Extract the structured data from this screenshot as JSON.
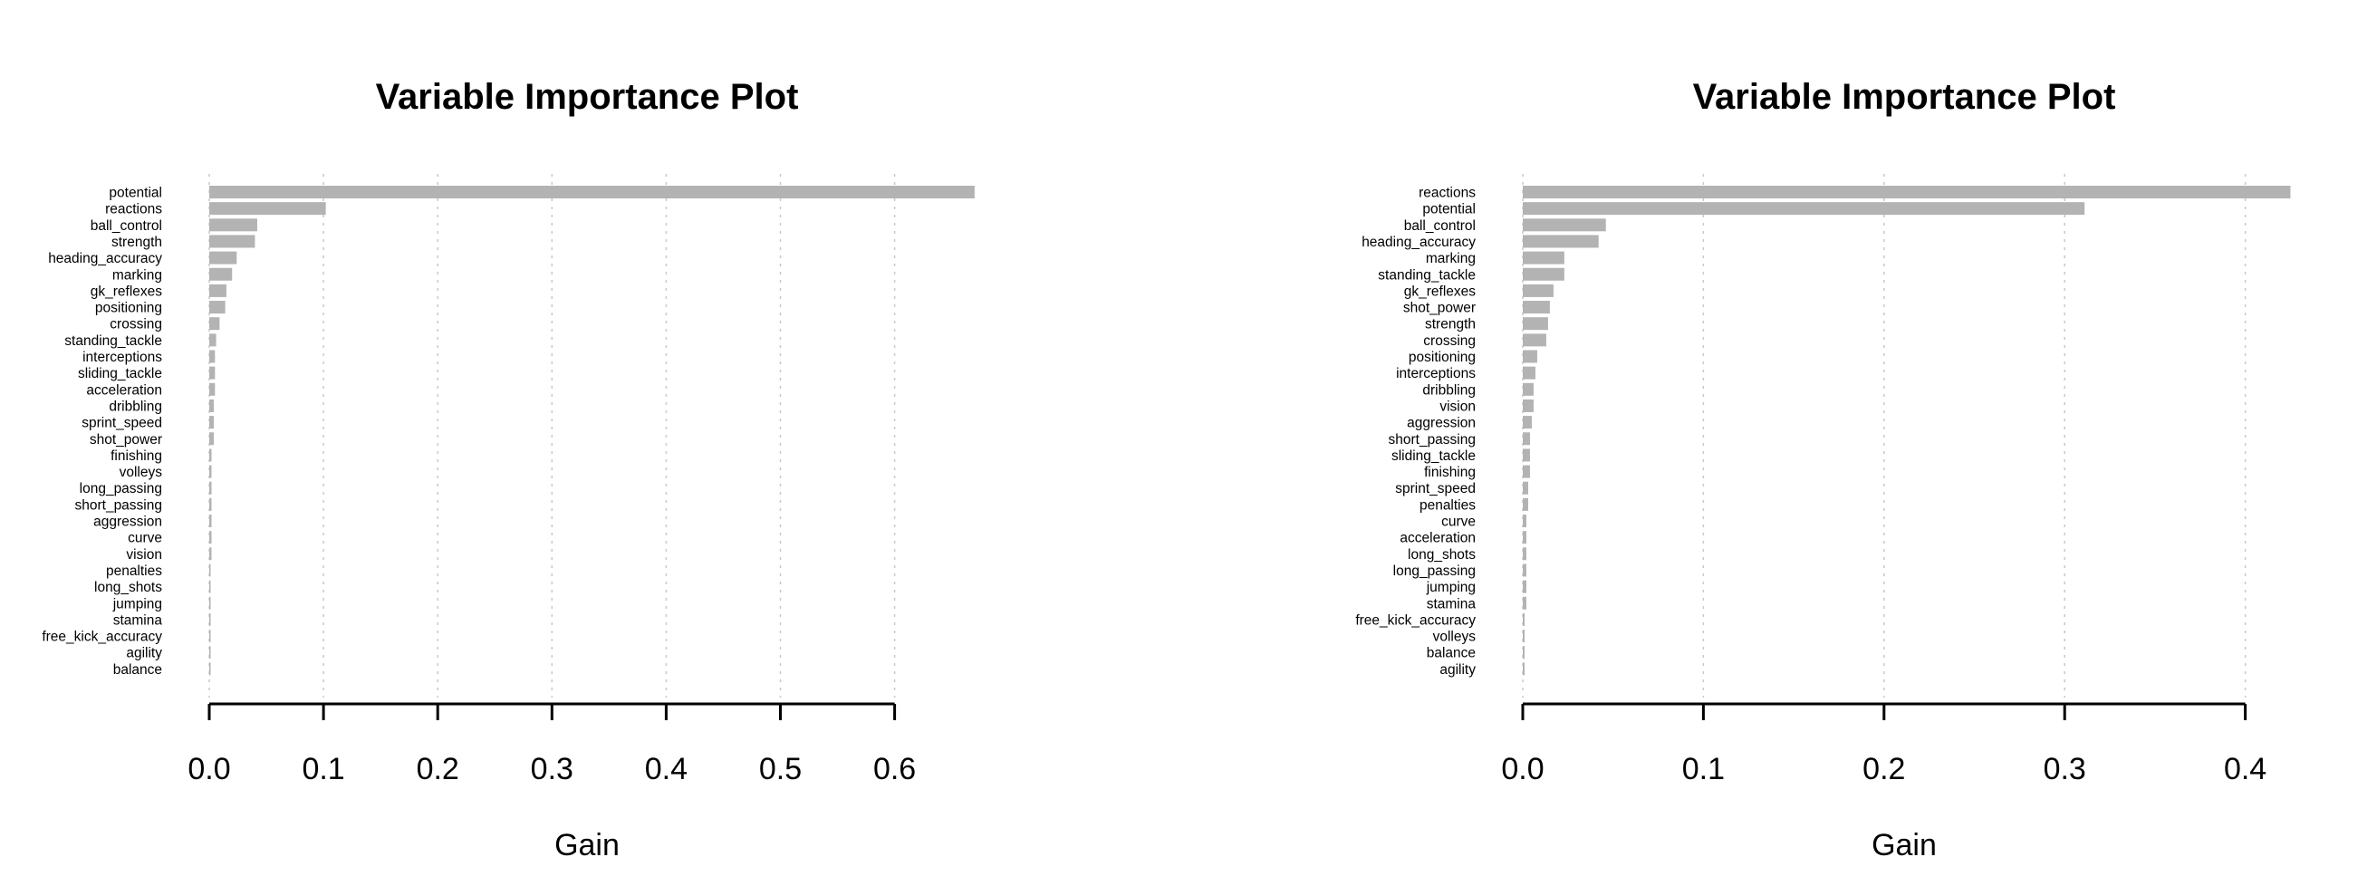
{
  "chart_data": [
    {
      "type": "bar",
      "orientation": "horizontal",
      "title": "Variable Importance Plot",
      "xlabel": "Gain",
      "ylabel": "",
      "xlim": [
        0,
        0.67
      ],
      "ticks": [
        "0.0",
        "0.1",
        "0.2",
        "0.3",
        "0.4",
        "0.5",
        "0.6"
      ],
      "tick_values": [
        0,
        0.1,
        0.2,
        0.3,
        0.4,
        0.5,
        0.6
      ],
      "grid": true,
      "bar_color": "#b3b3b3",
      "categories": [
        "potential",
        "reactions",
        "ball_control",
        "strength",
        "heading_accuracy",
        "marking",
        "gk_reflexes",
        "positioning",
        "crossing",
        "standing_tackle",
        "interceptions",
        "sliding_tackle",
        "acceleration",
        "dribbling",
        "sprint_speed",
        "shot_power",
        "finishing",
        "volleys",
        "long_passing",
        "short_passing",
        "aggression",
        "curve",
        "vision",
        "penalties",
        "long_shots",
        "jumping",
        "stamina",
        "free_kick_accuracy",
        "agility",
        "balance"
      ],
      "values": [
        0.67,
        0.102,
        0.042,
        0.04,
        0.024,
        0.02,
        0.015,
        0.014,
        0.009,
        0.006,
        0.005,
        0.005,
        0.005,
        0.004,
        0.004,
        0.004,
        0.002,
        0.002,
        0.002,
        0.002,
        0.002,
        0.002,
        0.002,
        0.001,
        0.001,
        0.001,
        0.001,
        0.001,
        0.001,
        0.001
      ]
    },
    {
      "type": "bar",
      "orientation": "horizontal",
      "title": "Variable Importance Plot",
      "xlabel": "Gain",
      "ylabel": "",
      "xlim": [
        0,
        0.425
      ],
      "ticks": [
        "0.0",
        "0.1",
        "0.2",
        "0.3",
        "0.4"
      ],
      "tick_values": [
        0,
        0.1,
        0.2,
        0.3,
        0.4
      ],
      "grid": true,
      "bar_color": "#b3b3b3",
      "categories": [
        "reactions",
        "potential",
        "ball_control",
        "heading_accuracy",
        "marking",
        "standing_tackle",
        "gk_reflexes",
        "shot_power",
        "strength",
        "crossing",
        "positioning",
        "interceptions",
        "dribbling",
        "vision",
        "aggression",
        "short_passing",
        "sliding_tackle",
        "finishing",
        "sprint_speed",
        "penalties",
        "curve",
        "acceleration",
        "long_shots",
        "long_passing",
        "jumping",
        "stamina",
        "free_kick_accuracy",
        "volleys",
        "balance",
        "agility"
      ],
      "values": [
        0.425,
        0.311,
        0.046,
        0.042,
        0.023,
        0.023,
        0.017,
        0.015,
        0.014,
        0.013,
        0.008,
        0.007,
        0.006,
        0.006,
        0.005,
        0.004,
        0.004,
        0.004,
        0.003,
        0.003,
        0.002,
        0.002,
        0.002,
        0.002,
        0.002,
        0.002,
        0.001,
        0.001,
        0.001,
        0.001
      ]
    }
  ]
}
